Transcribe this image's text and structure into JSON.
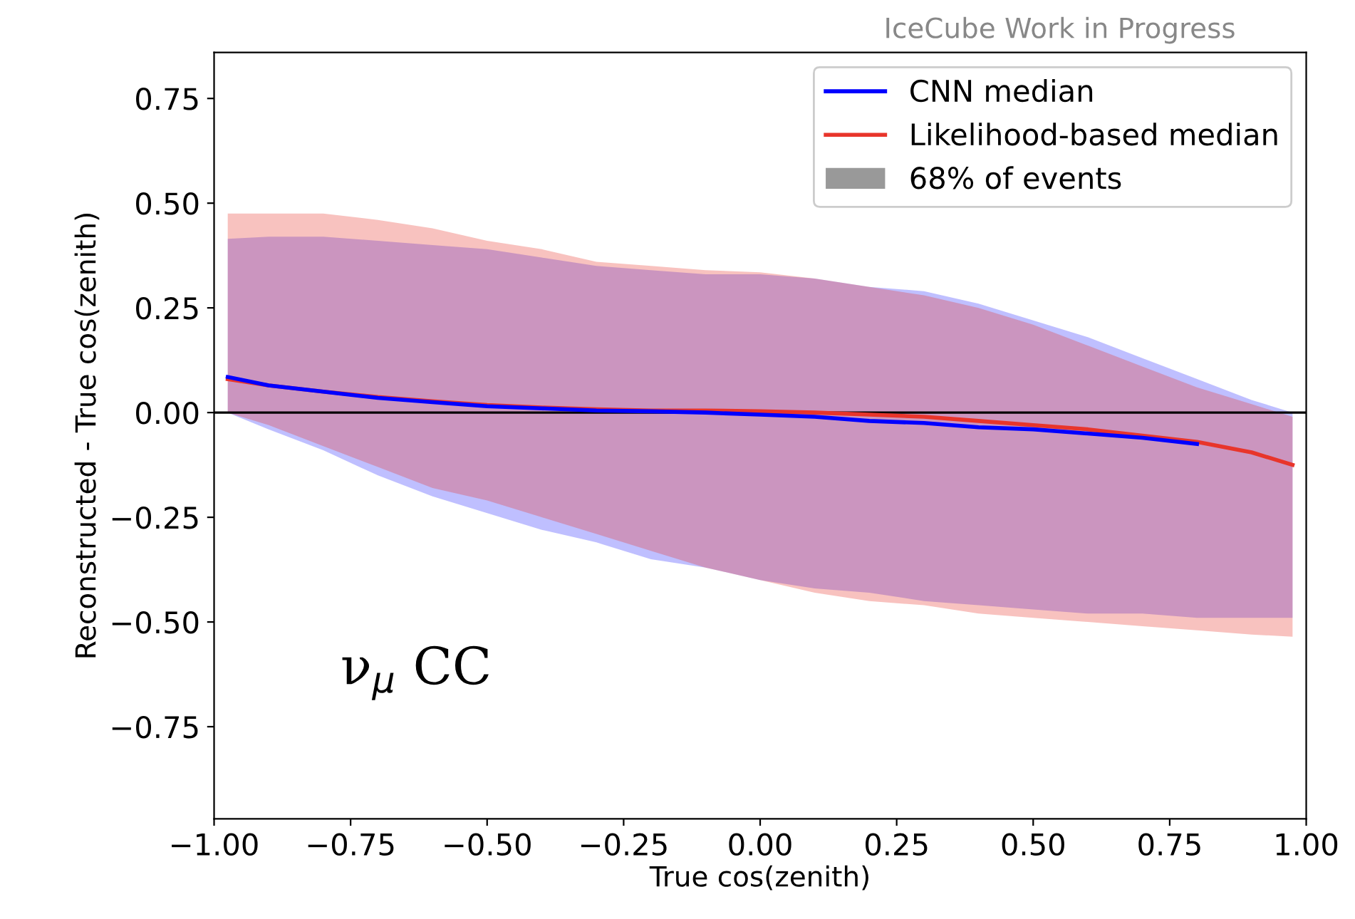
{
  "chart_data": {
    "type": "line",
    "xlabel": "True cos(zenith)",
    "ylabel": "Reconstructed - True cos(zenith)",
    "annotations": [
      "IceCube Work in Progress",
      "ν$_{μ}$ CC"
    ],
    "xlim": [
      -1.0,
      1.0
    ],
    "ylim": [
      -0.97,
      0.86
    ],
    "xticks": [
      {
        "value": -1.0,
        "label": "−1.00"
      },
      {
        "value": -0.75,
        "label": "−0.75"
      },
      {
        "value": -0.5,
        "label": "−0.50"
      },
      {
        "value": -0.25,
        "label": "−0.25"
      },
      {
        "value": 0.0,
        "label": "0.00"
      },
      {
        "value": 0.25,
        "label": "0.25"
      },
      {
        "value": 0.5,
        "label": "0.50"
      },
      {
        "value": 0.75,
        "label": "0.75"
      },
      {
        "value": 1.0,
        "label": "1.00"
      }
    ],
    "yticks": [
      {
        "value": -0.75,
        "label": "−0.75"
      },
      {
        "value": -0.5,
        "label": "−0.50"
      },
      {
        "value": -0.25,
        "label": "−0.25"
      },
      {
        "value": 0.0,
        "label": "0.00"
      },
      {
        "value": 0.25,
        "label": "0.25"
      },
      {
        "value": 0.5,
        "label": "0.50"
      },
      {
        "value": 0.75,
        "label": "0.75"
      }
    ],
    "ref_lines": [
      {
        "axis": "y",
        "value": 0,
        "color": "#000000"
      }
    ],
    "legend": "top right",
    "grid": false,
    "series": [
      {
        "name": "CNN median",
        "color": "#0000ff",
        "x": [
          -0.975,
          -0.9,
          -0.8,
          -0.7,
          -0.6,
          -0.5,
          -0.4,
          -0.3,
          -0.2,
          -0.1,
          0,
          0.1,
          0.2,
          0.3,
          0.4,
          0.5,
          0.6,
          0.7,
          0.8,
          0.9,
          0.975
        ],
        "values": [
          0.085,
          0.065,
          0.05,
          0.035,
          0.025,
          0.015,
          0.01,
          0.005,
          0.003,
          0,
          -0.005,
          -0.01,
          -0.02,
          -0.025,
          -0.035,
          -0.04,
          -0.05,
          -0.06,
          -0.075,
          null,
          null
        ],
        "upper": [
          0.415,
          0.42,
          0.42,
          0.41,
          0.4,
          0.39,
          0.37,
          0.35,
          0.34,
          0.33,
          0.33,
          0.32,
          0.3,
          0.29,
          0.26,
          0.22,
          0.18,
          0.13,
          0.08,
          0.03,
          0.0
        ],
        "lower": [
          0,
          -0.04,
          -0.09,
          -0.15,
          -0.2,
          -0.24,
          -0.28,
          -0.31,
          -0.35,
          -0.37,
          -0.4,
          -0.42,
          -0.43,
          -0.45,
          -0.46,
          -0.47,
          -0.48,
          -0.48,
          -0.49,
          -0.49,
          -0.49
        ]
      },
      {
        "name": "Likelihood-based median",
        "color": "#e8352b",
        "x": [
          -0.975,
          -0.9,
          -0.8,
          -0.7,
          -0.6,
          -0.5,
          -0.4,
          -0.3,
          -0.2,
          -0.1,
          0,
          0.1,
          0.2,
          0.3,
          0.4,
          0.5,
          0.6,
          0.7,
          0.8,
          0.9,
          0.975
        ],
        "values": [
          0.08,
          0.065,
          0.05,
          0.037,
          0.027,
          0.018,
          0.012,
          0.008,
          0.005,
          0.005,
          0.003,
          0,
          -0.005,
          -0.01,
          -0.02,
          -0.03,
          -0.04,
          -0.055,
          -0.07,
          -0.095,
          -0.125
        ],
        "upper": [
          0.475,
          0.475,
          0.475,
          0.46,
          0.44,
          0.41,
          0.39,
          0.36,
          0.35,
          0.34,
          0.335,
          0.32,
          0.3,
          0.28,
          0.25,
          0.21,
          0.16,
          0.11,
          0.06,
          0.02,
          -0.01
        ],
        "lower": [
          0,
          -0.03,
          -0.08,
          -0.13,
          -0.18,
          -0.21,
          -0.25,
          -0.29,
          -0.33,
          -0.37,
          -0.4,
          -0.43,
          -0.45,
          -0.46,
          -0.48,
          -0.49,
          -0.5,
          -0.51,
          -0.52,
          -0.53,
          -0.535
        ]
      },
      {
        "name": "68% of events",
        "type": "area",
        "color": "#999999"
      }
    ]
  }
}
